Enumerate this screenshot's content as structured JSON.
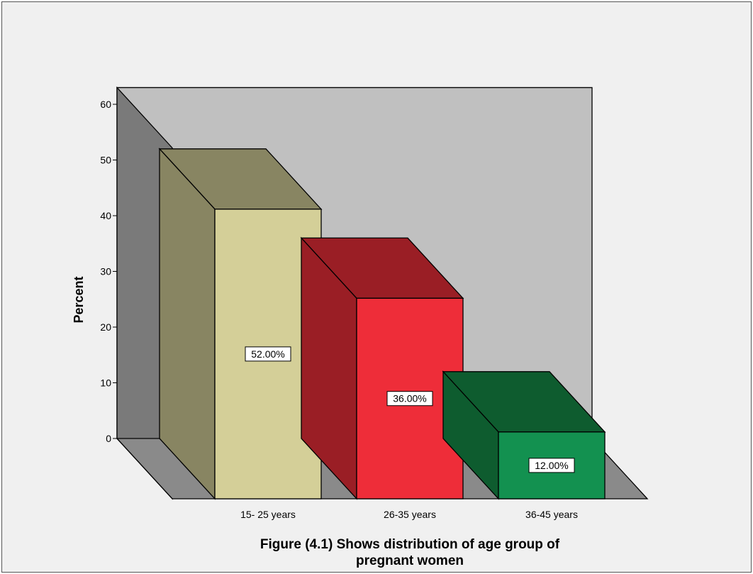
{
  "chart_data": {
    "type": "bar",
    "style": "3d",
    "categories": [
      "15- 25 years",
      "26-35 years",
      "36-45 years"
    ],
    "values": [
      52,
      36,
      12
    ],
    "data_labels": [
      "52.00%",
      "36.00%",
      "12.00%"
    ],
    "colors": {
      "bar_fronts": [
        "#d4cf98",
        "#ee2d39",
        "#139150"
      ],
      "bar_sides": [
        "#888562",
        "#9a1e25",
        "#0e5c2f"
      ],
      "back_wall": "#c0c0c0",
      "side_wall": "#7a7a7a",
      "floor": "#8a8a8a",
      "frame_bg": "#f0f0f0"
    },
    "ylabel": "Percent",
    "xlabel": "",
    "title_lines": [
      "Figure (4.1) Shows distribution of age group of",
      "pregnant women"
    ],
    "ylim": [
      0,
      60
    ],
    "yticks": [
      0,
      10,
      20,
      30,
      40,
      50,
      60
    ],
    "grid": false,
    "legend": "none"
  }
}
